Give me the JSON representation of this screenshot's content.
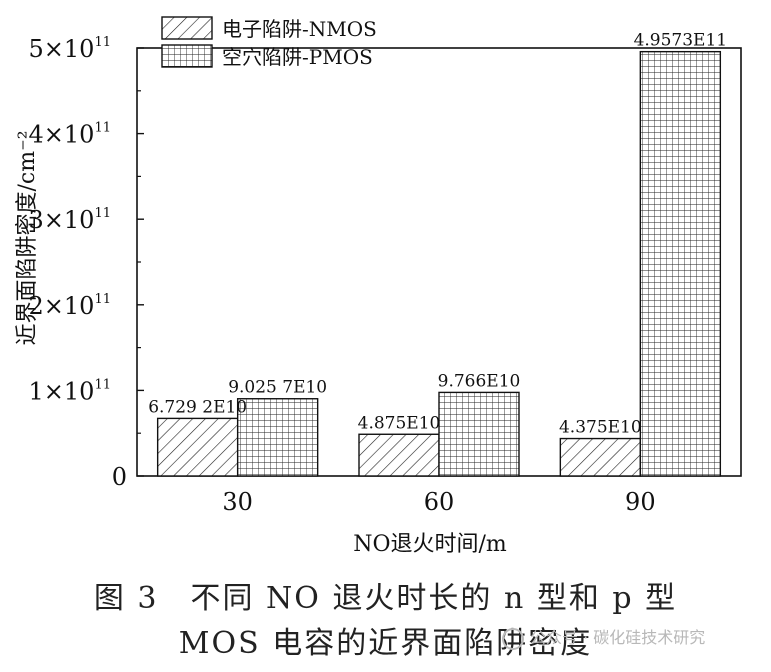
{
  "chart_data": {
    "type": "bar",
    "categories": [
      "30",
      "60",
      "90"
    ],
    "series": [
      {
        "name": "电子陷阱-NMOS",
        "pattern": "hatch",
        "values": [
          67292000000,
          48750000000,
          43750000000
        ],
        "labels": [
          "6.729 2E10",
          "4.875E10",
          "4.375E10"
        ]
      },
      {
        "name": "空穴陷阱-PMOS",
        "pattern": "grid",
        "values": [
          90257000000,
          97660000000,
          495730000000
        ],
        "labels": [
          "9.025 7E10",
          "9.766E10",
          "4.9573E11"
        ]
      }
    ],
    "xlabel": "NO退火时间/m",
    "ylabel": "近界面陷阱密度/cm⁻²",
    "ylim": [
      0,
      500000000000
    ],
    "yticks": [
      {
        "value": 0,
        "mant": "0",
        "exp": ""
      },
      {
        "value": 100000000000,
        "mant": "1×10",
        "exp": "11"
      },
      {
        "value": 200000000000,
        "mant": "2×10",
        "exp": "11"
      },
      {
        "value": 300000000000,
        "mant": "3×10",
        "exp": "11"
      },
      {
        "value": 400000000000,
        "mant": "4×10",
        "exp": "11"
      },
      {
        "value": 500000000000,
        "mant": "5×10",
        "exp": "11"
      }
    ],
    "legend_position": "top-left",
    "grid": false
  },
  "caption": {
    "line1": "图 3　不同 NO 退火时长的 n 型和 p 型",
    "line2": "MOS 电容的近界面陷阱密度"
  },
  "watermark": "公众号 · 碳化硅技术研究"
}
